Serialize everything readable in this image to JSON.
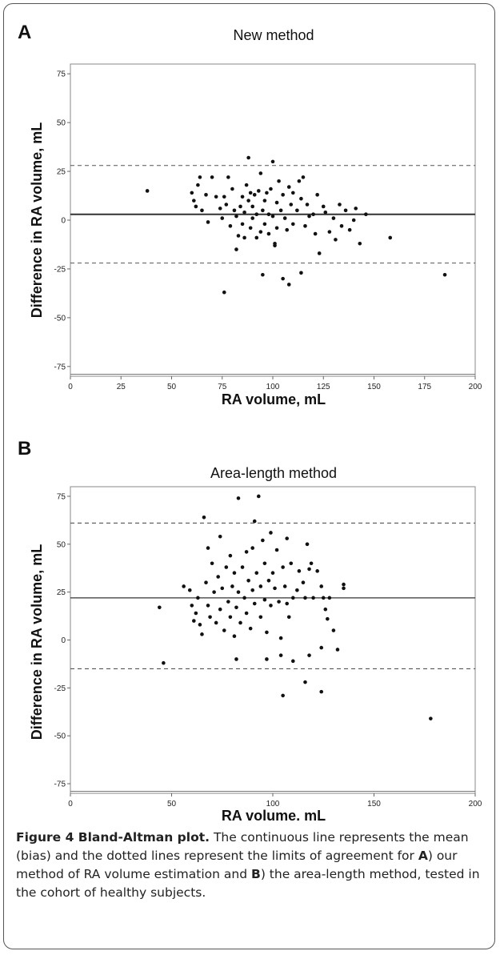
{
  "chart_data": [
    {
      "type": "scatter",
      "panel_label": "A",
      "title": "New method",
      "xlabel": "RA volume, mL",
      "ylabel": "Difference in RA volume, mL",
      "xlim": [
        0,
        200
      ],
      "ylim": [
        -80,
        80
      ],
      "xticks": [
        0,
        25,
        50,
        75,
        100,
        125,
        150,
        175,
        200
      ],
      "yticks": [
        -75,
        -50,
        -25,
        0,
        25,
        50,
        75
      ],
      "xticklabels": [
        "0",
        "25",
        "50",
        "75",
        "100",
        "125",
        "150",
        "175",
        "200"
      ],
      "yticklabels": [
        "-75",
        "-50",
        "-25",
        "0",
        "25",
        "50",
        "75"
      ],
      "bias": 3,
      "loa": [
        -22,
        28
      ],
      "grid": false,
      "points": [
        [
          38,
          15
        ],
        [
          60,
          14
        ],
        [
          61,
          10
        ],
        [
          62,
          7
        ],
        [
          63,
          18
        ],
        [
          64,
          22
        ],
        [
          65,
          5
        ],
        [
          67,
          13
        ],
        [
          68,
          -1
        ],
        [
          70,
          22
        ],
        [
          72,
          12
        ],
        [
          74,
          6
        ],
        [
          75,
          1
        ],
        [
          76,
          12
        ],
        [
          77,
          8
        ],
        [
          78,
          22
        ],
        [
          79,
          -3
        ],
        [
          80,
          16
        ],
        [
          81,
          5
        ],
        [
          82,
          2
        ],
        [
          83,
          -8
        ],
        [
          84,
          7
        ],
        [
          85,
          12
        ],
        [
          85,
          -2
        ],
        [
          86,
          4
        ],
        [
          87,
          18
        ],
        [
          88,
          32
        ],
        [
          88,
          10
        ],
        [
          89,
          14
        ],
        [
          89,
          -4
        ],
        [
          90,
          1
        ],
        [
          90,
          7
        ],
        [
          91,
          13
        ],
        [
          92,
          3
        ],
        [
          92,
          -9
        ],
        [
          93,
          15
        ],
        [
          94,
          24
        ],
        [
          94,
          -6
        ],
        [
          95,
          5
        ],
        [
          96,
          10
        ],
        [
          96,
          -2
        ],
        [
          97,
          14
        ],
        [
          98,
          3
        ],
        [
          98,
          -7
        ],
        [
          99,
          16
        ],
        [
          100,
          30
        ],
        [
          100,
          2
        ],
        [
          101,
          -12
        ],
        [
          102,
          9
        ],
        [
          102,
          -4
        ],
        [
          103,
          20
        ],
        [
          104,
          5
        ],
        [
          105,
          13
        ],
        [
          106,
          1
        ],
        [
          107,
          -5
        ],
        [
          108,
          17
        ],
        [
          109,
          8
        ],
        [
          110,
          14
        ],
        [
          110,
          -2
        ],
        [
          112,
          5
        ],
        [
          113,
          20
        ],
        [
          114,
          11
        ],
        [
          115,
          22
        ],
        [
          116,
          -3
        ],
        [
          117,
          8
        ],
        [
          118,
          2
        ],
        [
          120,
          3
        ],
        [
          121,
          -7
        ],
        [
          122,
          13
        ],
        [
          123,
          -17
        ],
        [
          125,
          7
        ],
        [
          126,
          4
        ],
        [
          128,
          -6
        ],
        [
          130,
          1
        ],
        [
          131,
          -10
        ],
        [
          133,
          8
        ],
        [
          134,
          -3
        ],
        [
          136,
          5
        ],
        [
          138,
          -5
        ],
        [
          140,
          0
        ],
        [
          141,
          6
        ],
        [
          143,
          -12
        ],
        [
          146,
          3
        ],
        [
          158,
          -9
        ],
        [
          185,
          -28
        ],
        [
          76,
          -37
        ],
        [
          95,
          -28
        ],
        [
          105,
          -30
        ],
        [
          108,
          -33
        ],
        [
          114,
          -27
        ],
        [
          82,
          -15
        ],
        [
          86,
          -9
        ],
        [
          101,
          -13
        ]
      ]
    },
    {
      "type": "scatter",
      "panel_label": "B",
      "title": "Area-length method",
      "xlabel": "RA volume, mL",
      "ylabel": "Difference in RA volume, mL",
      "xlim": [
        0,
        200
      ],
      "ylim": [
        -80,
        80
      ],
      "xticks": [
        0,
        50,
        100,
        150,
        200
      ],
      "yticks": [
        -75,
        -50,
        -25,
        0,
        25,
        50,
        75
      ],
      "xticklabels": [
        "0",
        "50",
        "100",
        "150",
        "200"
      ],
      "yticklabels": [
        "-75",
        "-50",
        "-25",
        "0",
        "25",
        "50",
        "75"
      ],
      "bias": 22,
      "loa": [
        -15,
        61
      ],
      "grid": false,
      "points": [
        [
          44,
          17
        ],
        [
          46,
          -12
        ],
        [
          56,
          28
        ],
        [
          59,
          26
        ],
        [
          60,
          18
        ],
        [
          61,
          10
        ],
        [
          62,
          14
        ],
        [
          63,
          22
        ],
        [
          64,
          8
        ],
        [
          65,
          3
        ],
        [
          66,
          64
        ],
        [
          67,
          30
        ],
        [
          68,
          48
        ],
        [
          68,
          18
        ],
        [
          69,
          12
        ],
        [
          70,
          40
        ],
        [
          71,
          25
        ],
        [
          72,
          9
        ],
        [
          73,
          33
        ],
        [
          74,
          54
        ],
        [
          74,
          16
        ],
        [
          75,
          27
        ],
        [
          76,
          5
        ],
        [
          77,
          38
        ],
        [
          78,
          20
        ],
        [
          79,
          44
        ],
        [
          79,
          12
        ],
        [
          80,
          28
        ],
        [
          81,
          2
        ],
        [
          81,
          35
        ],
        [
          82,
          17
        ],
        [
          83,
          74
        ],
        [
          83,
          25
        ],
        [
          84,
          9
        ],
        [
          85,
          38
        ],
        [
          86,
          22
        ],
        [
          87,
          46
        ],
        [
          87,
          14
        ],
        [
          88,
          31
        ],
        [
          89,
          6
        ],
        [
          90,
          26
        ],
        [
          90,
          48
        ],
        [
          91,
          62
        ],
        [
          91,
          19
        ],
        [
          92,
          35
        ],
        [
          93,
          75
        ],
        [
          94,
          28
        ],
        [
          94,
          12
        ],
        [
          95,
          52
        ],
        [
          96,
          40
        ],
        [
          96,
          21
        ],
        [
          97,
          4
        ],
        [
          98,
          31
        ],
        [
          99,
          56
        ],
        [
          99,
          18
        ],
        [
          100,
          35
        ],
        [
          101,
          27
        ],
        [
          102,
          47
        ],
        [
          103,
          20
        ],
        [
          104,
          1
        ],
        [
          105,
          38
        ],
        [
          106,
          28
        ],
        [
          107,
          53
        ],
        [
          107,
          19
        ],
        [
          108,
          12
        ],
        [
          109,
          40
        ],
        [
          110,
          22
        ],
        [
          112,
          26
        ],
        [
          113,
          36
        ],
        [
          115,
          30
        ],
        [
          116,
          22
        ],
        [
          117,
          50
        ],
        [
          118,
          37
        ],
        [
          119,
          40
        ],
        [
          120,
          22
        ],
        [
          122,
          36
        ],
        [
          124,
          28
        ],
        [
          125,
          22
        ],
        [
          126,
          16
        ],
        [
          127,
          11
        ],
        [
          128,
          22
        ],
        [
          130,
          5
        ],
        [
          132,
          -5
        ],
        [
          135,
          29
        ],
        [
          135,
          27
        ],
        [
          82,
          -10
        ],
        [
          97,
          -10
        ],
        [
          104,
          -8
        ],
        [
          105,
          -29
        ],
        [
          110,
          -11
        ],
        [
          116,
          -22
        ],
        [
          118,
          -8
        ],
        [
          124,
          -27
        ],
        [
          124,
          -4
        ],
        [
          178,
          -41
        ]
      ]
    }
  ],
  "caption": {
    "lead": "Figure 4 Bland-Altman plot.",
    "seg1": " The continuous line represents the mean (bias) and the dotted lines represent the limits of agreement for ",
    "a": "A",
    "seg2": ") our method of RA volume estimation and ",
    "b": "B",
    "seg3": ") the area-length method, tested in the cohort of healthy subjects."
  }
}
